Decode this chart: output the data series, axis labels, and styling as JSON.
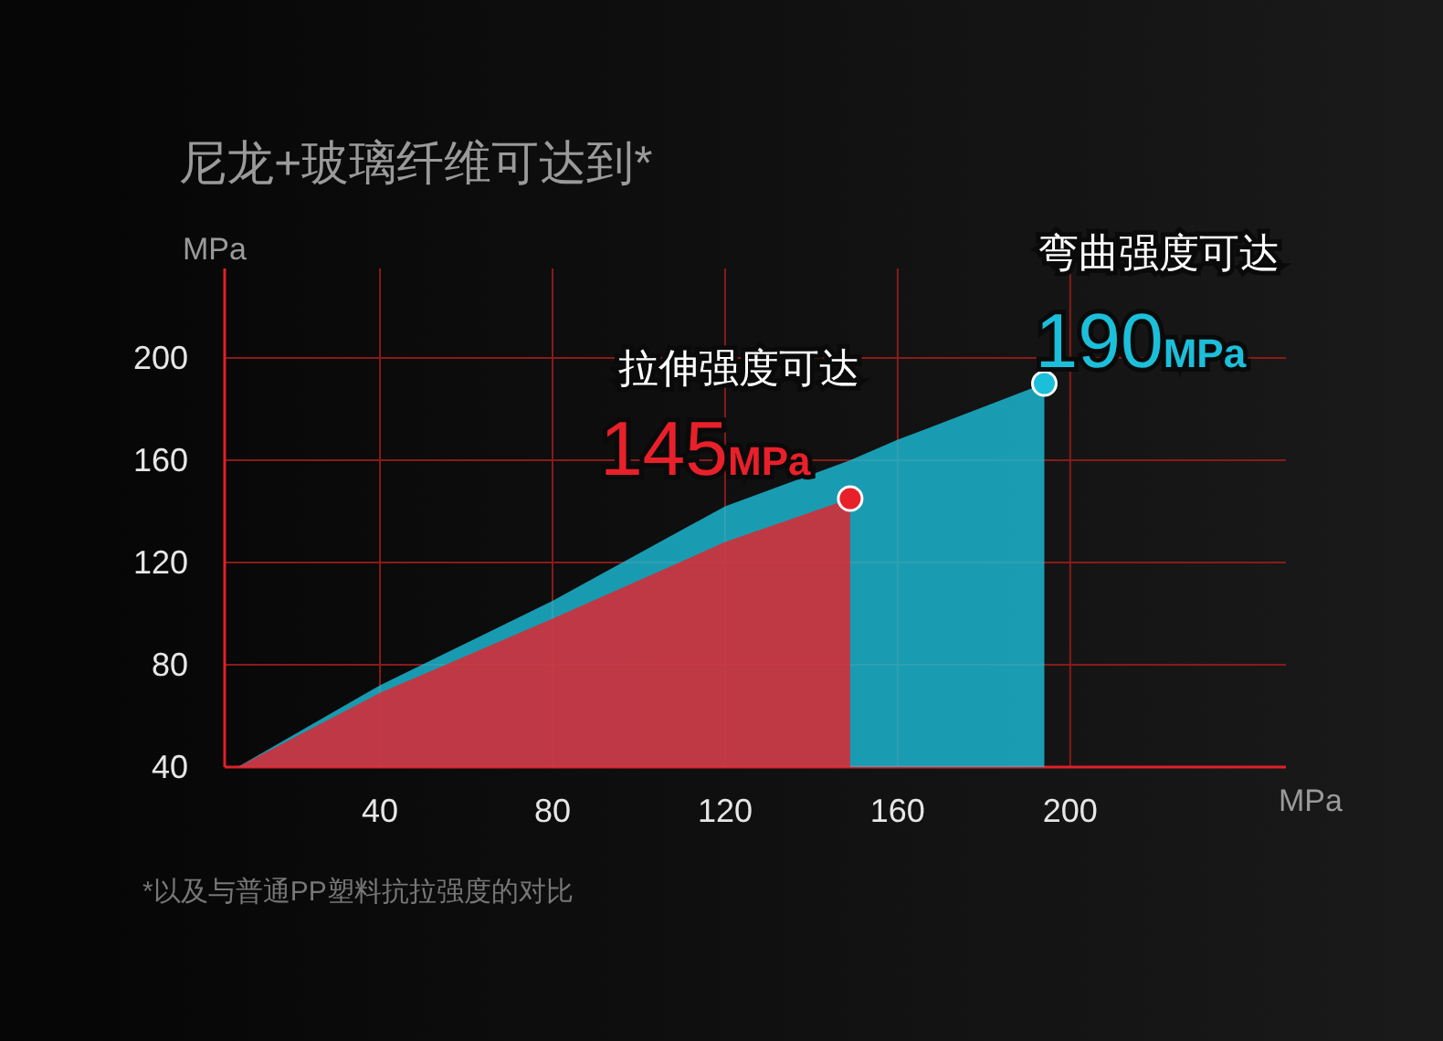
{
  "chart_data": {
    "type": "area",
    "title": "尼龙+玻璃纤维可达到*",
    "xlabel": "MPa",
    "ylabel": "MPa",
    "xlim": [
      4,
      250
    ],
    "ylim": [
      40,
      235
    ],
    "xticks": [
      40,
      80,
      120,
      160,
      200
    ],
    "yticks": [
      40,
      80,
      120,
      160,
      200
    ],
    "grid": true,
    "series": [
      {
        "color": "#1cbfda",
        "x": [
          7,
          40,
          80,
          120,
          149,
          160,
          194
        ],
        "values": [
          40,
          72,
          105,
          142,
          160,
          168,
          190
        ],
        "value_labels": [
          null,
          null,
          null,
          null,
          null,
          null,
          "190MPa"
        ]
      },
      {
        "color": "#e8202a",
        "x": [
          7,
          40,
          80,
          120,
          149
        ],
        "values": [
          40,
          69,
          98,
          128,
          145
        ],
        "value_labels": [
          null,
          null,
          null,
          null,
          "145MPa"
        ]
      }
    ],
    "annotations": [
      {
        "text": "拉伸强度可达",
        "x": 149,
        "y": 145
      },
      {
        "text": "弯曲强度可达",
        "x": 194,
        "y": 190
      },
      "*以及与普通PP塑料抗拉强度的对比"
    ]
  }
}
